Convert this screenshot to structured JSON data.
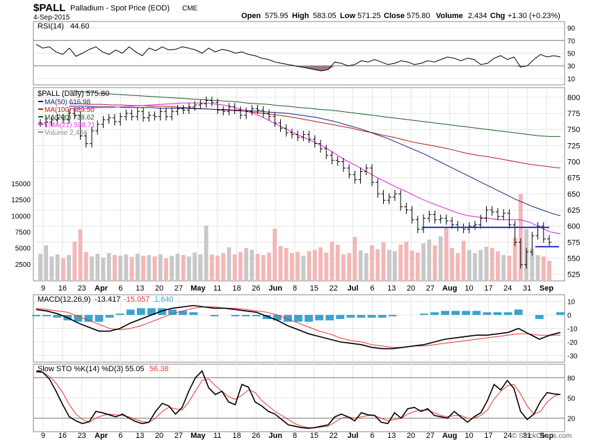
{
  "header": {
    "symbol": "$PALL",
    "name": "Palladium - Spot Price (EOD)",
    "exchange": "CME",
    "date": "4-Sep-2015",
    "stats": {
      "open_label": "Open",
      "open": "575.95",
      "high_label": "High",
      "high": "583.05",
      "low_label": "Low",
      "low": "571.25",
      "close_label": "Close",
      "close": "575.80",
      "volume_label": "Volume",
      "volume": "2,434",
      "chg_label": "Chg",
      "chg": "+1.30 (+0.23%)"
    },
    "watermark": "© StockCharts.com"
  },
  "colors": {
    "ma50": "#1a237e",
    "ma100": "#b71c1c",
    "ma200": "#1b5e20",
    "ema21": "#e040e0",
    "vol_up": "#c8c8c8",
    "vol_down": "#f4b6b6",
    "macd_hist": "#3ba3d0",
    "macd_signal": "#e53935",
    "sto_d": "#e53935",
    "support": "#1e36d6",
    "rsi_fill": "#a07878"
  },
  "chart_data": [
    {
      "panel": "rsi",
      "type": "line",
      "label": "RSI(14)",
      "last_value": "44.60",
      "yticks": [
        10,
        30,
        50,
        70,
        90
      ],
      "ylim": [
        0,
        100
      ],
      "reference_lines": [
        30,
        70
      ],
      "values": [
        64,
        58,
        60,
        52,
        48,
        58,
        45,
        50,
        56,
        60,
        52,
        48,
        55,
        50,
        60,
        52,
        46,
        58,
        54,
        60,
        55,
        56,
        60,
        58,
        55,
        50,
        58,
        52,
        56,
        54,
        50,
        52,
        48,
        46,
        42,
        40,
        36,
        34,
        32,
        30,
        28,
        26,
        24,
        22,
        24,
        36,
        34,
        30,
        32,
        38,
        36,
        40,
        36,
        32,
        34,
        38,
        36,
        32,
        34,
        38,
        36,
        40,
        44,
        42,
        38,
        42,
        40,
        32,
        34,
        42,
        46,
        40,
        44,
        28,
        30,
        40,
        48,
        44,
        46,
        44
      ]
    },
    {
      "panel": "price",
      "type": "ohlc",
      "title": "$PALL (Daily) 575.80",
      "legend": [
        {
          "label": "MA(50) 616.98",
          "color": "#1a237e"
        },
        {
          "label": "MA(100) 689.50",
          "color": "#b71c1c"
        },
        {
          "label": "MA(200) 738.62",
          "color": "#1b5e20"
        },
        {
          "label": "EMA(21) 588.71",
          "color": "#e040e0"
        },
        {
          "label": "Volume 2,434",
          "color": "#8c8c8c"
        }
      ],
      "ylim": [
        515,
        815
      ],
      "yticks": [
        525,
        550,
        575,
        600,
        625,
        650,
        675,
        700,
        725,
        750,
        775,
        800
      ],
      "volume_ticks": [
        2500,
        5000,
        7500,
        10000,
        12500,
        15000
      ],
      "volume_ylim": [
        0,
        30000
      ],
      "x_labels": [
        "9",
        "16",
        "23",
        "Apr",
        "6",
        "13",
        "20",
        "27",
        "May",
        "11",
        "18",
        "26",
        "Jun",
        "8",
        "15",
        "22",
        "Jul",
        "6",
        "13",
        "20",
        "27",
        "Aug",
        "10",
        "17",
        "24",
        "31",
        "Sep"
      ],
      "close": [
        760,
        762,
        765,
        768,
        765,
        775,
        772,
        740,
        728,
        748,
        758,
        765,
        768,
        762,
        770,
        775,
        770,
        778,
        768,
        772,
        770,
        778,
        770,
        778,
        782,
        780,
        785,
        788,
        790,
        795,
        792,
        780,
        778,
        785,
        780,
        772,
        778,
        782,
        780,
        775,
        770,
        760,
        752,
        745,
        742,
        738,
        742,
        735,
        728,
        720,
        710,
        702,
        700,
        690,
        680,
        672,
        685,
        690,
        668,
        650,
        640,
        645,
        650,
        630,
        625,
        610,
        595,
        612,
        618,
        610,
        612,
        608,
        602,
        598,
        595,
        600,
        602,
        612,
        625,
        622,
        615,
        620,
        602,
        575,
        540,
        560,
        585,
        600,
        580,
        575
      ],
      "volume": [
        4200,
        5500,
        3800,
        4100,
        3500,
        4000,
        6100,
        8000,
        4500,
        3800,
        4200,
        3600,
        4300,
        4000,
        3900,
        4100,
        3700,
        4200,
        3900,
        4000,
        3800,
        4100,
        3500,
        3900,
        4200,
        4000,
        3800,
        4400,
        4100,
        8600,
        4100,
        3900,
        4300,
        5200,
        4100,
        4500,
        5100,
        4800,
        4200,
        4000,
        4400,
        8100,
        5400,
        5100,
        4300,
        4500,
        3900,
        4600,
        4800,
        5200,
        4400,
        6100,
        5600,
        4100,
        4300,
        6800,
        4700,
        4300,
        5500,
        4900,
        6000,
        4800,
        4600,
        5600,
        6100,
        4700,
        4400,
        5800,
        6400,
        5500,
        6900,
        8200,
        5100,
        4300,
        6200,
        4800,
        4300,
        4800,
        5300,
        5100,
        4600,
        4000,
        3900,
        6700,
        13500,
        8000,
        5000,
        4000,
        3800,
        3100
      ],
      "ma50": [
        786,
        786,
        786,
        785,
        785,
        785,
        784,
        784,
        784,
        784,
        783,
        783,
        783,
        783,
        782,
        782,
        781,
        781,
        780,
        780,
        779,
        778,
        777,
        776,
        775,
        773,
        771,
        769,
        766,
        763,
        759,
        755,
        751,
        746,
        741,
        736,
        730,
        724,
        718,
        712,
        705,
        698,
        691,
        684,
        677,
        670,
        663,
        656,
        649,
        642,
        636,
        630,
        625,
        620,
        616
      ],
      "ma100": [
        790,
        790,
        789,
        789,
        788,
        788,
        787,
        787,
        786,
        786,
        785,
        784,
        783,
        782,
        781,
        780,
        779,
        778,
        776,
        774,
        772,
        770,
        767,
        764,
        761,
        758,
        755,
        752,
        748,
        745,
        741,
        738,
        734,
        730,
        727,
        724,
        721,
        717,
        713,
        710,
        708,
        705,
        702,
        699,
        696,
        694,
        692,
        690
      ],
      "ma200": [
        810,
        809,
        808,
        806,
        805,
        804,
        803,
        802,
        801,
        800,
        799,
        798,
        797,
        796,
        795,
        794,
        793,
        791,
        790,
        789,
        787,
        786,
        784,
        783,
        781,
        780,
        778,
        776,
        774,
        772,
        770,
        768,
        766,
        764,
        762,
        760,
        758,
        756,
        754,
        752,
        750,
        748,
        746,
        744,
        742,
        740,
        739,
        739
      ],
      "ema21": [
        782,
        783,
        783,
        784,
        784,
        785,
        786,
        787,
        788,
        789,
        790,
        791,
        791,
        791,
        790,
        788,
        785,
        780,
        775,
        768,
        760,
        752,
        744,
        737,
        730,
        722,
        712,
        702,
        694,
        685,
        676,
        668,
        660,
        653,
        645,
        638,
        632,
        626,
        620,
        616,
        614,
        612,
        610,
        610,
        610,
        606,
        598,
        591,
        588
      ],
      "support_lines": [
        {
          "price": 598
        },
        {
          "price": 568
        }
      ]
    },
    {
      "panel": "macd",
      "type": "line",
      "label": "MACD(12,26,9)",
      "values_text": [
        "-13.417",
        "-15.057",
        "1.640"
      ],
      "yticks": [
        10,
        0,
        -10,
        -20,
        -30
      ],
      "ylim": [
        -35,
        15
      ],
      "macd": [
        4,
        3,
        1,
        -2,
        -6,
        -9,
        -12,
        -12,
        -10,
        -6,
        -3,
        0,
        3,
        5,
        6,
        7,
        6,
        5,
        5,
        4,
        3,
        2,
        -1,
        -4,
        -8,
        -11,
        -14,
        -16,
        -18,
        -20,
        -21,
        -22,
        -24,
        -25,
        -25,
        -24,
        -23,
        -22,
        -20,
        -18,
        -17,
        -16,
        -15,
        -15,
        -14,
        -13,
        -10,
        -14,
        -18,
        -15,
        -13
      ],
      "signal": [
        5,
        4,
        3,
        2,
        -1,
        -4,
        -7,
        -10,
        -11,
        -10,
        -8,
        -5,
        -2,
        1,
        3,
        5,
        6,
        6,
        5,
        5,
        4,
        3,
        2,
        0,
        -3,
        -6,
        -9,
        -12,
        -14,
        -17,
        -19,
        -20,
        -22,
        -23,
        -24,
        -24,
        -23,
        -23,
        -22,
        -21,
        -20,
        -19,
        -18,
        -17,
        -16,
        -15,
        -14,
        -14,
        -15,
        -15,
        -15
      ],
      "histogram": [
        -1,
        -1,
        -2,
        -4,
        -5,
        -5,
        -5,
        -2,
        1,
        4,
        5,
        5,
        5,
        4,
        3,
        2,
        0,
        -1,
        0,
        -1,
        -1,
        -1,
        -3,
        -4,
        -5,
        -5,
        -5,
        -4,
        -4,
        -3,
        -2,
        -2,
        -2,
        -2,
        -1,
        0,
        0,
        1,
        2,
        3,
        3,
        3,
        3,
        2,
        2,
        2,
        4,
        0,
        -3,
        0,
        2
      ]
    },
    {
      "panel": "sto",
      "type": "line",
      "label": "Slow STO %K(14) %D(3)",
      "values_text": [
        "55.05",
        "56.38"
      ],
      "yticks": [
        20,
        50,
        80
      ],
      "ylim": [
        0,
        100
      ],
      "reference_lines": [
        20,
        80
      ],
      "k": [
        90,
        88,
        78,
        60,
        40,
        22,
        16,
        12,
        15,
        30,
        28,
        25,
        22,
        26,
        20,
        15,
        12,
        14,
        30,
        42,
        38,
        26,
        36,
        60,
        80,
        90,
        65,
        55,
        60,
        44,
        40,
        70,
        66,
        44,
        38,
        30,
        26,
        18,
        10,
        8,
        6,
        5,
        6,
        8,
        10,
        22,
        26,
        22,
        16,
        28,
        25,
        24,
        14,
        12,
        28,
        20,
        34,
        36,
        30,
        34,
        24,
        22,
        20,
        30,
        22,
        14,
        22,
        28,
        46,
        70,
        62,
        76,
        64,
        30,
        18,
        26,
        45,
        58,
        56,
        55
      ],
      "d": [
        88,
        88,
        82,
        72,
        58,
        40,
        26,
        18,
        14,
        20,
        24,
        26,
        25,
        24,
        22,
        18,
        15,
        14,
        20,
        30,
        36,
        34,
        32,
        44,
        60,
        76,
        78,
        68,
        60,
        52,
        48,
        54,
        62,
        58,
        46,
        38,
        30,
        24,
        18,
        12,
        8,
        6,
        6,
        7,
        8,
        14,
        20,
        22,
        20,
        22,
        24,
        24,
        20,
        16,
        18,
        20,
        26,
        30,
        32,
        32,
        28,
        24,
        22,
        24,
        24,
        20,
        20,
        24,
        32,
        48,
        60,
        68,
        70,
        56,
        38,
        26,
        30,
        44,
        52,
        56
      ]
    }
  ]
}
